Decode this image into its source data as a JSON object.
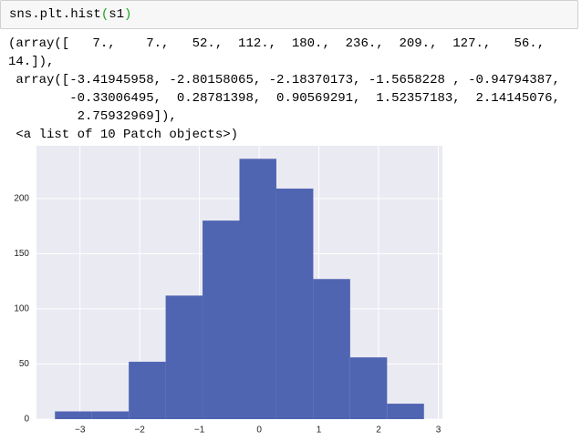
{
  "cell": {
    "code": [
      "sns.plt.hist",
      "(",
      "s1",
      ")"
    ]
  },
  "output": {
    "lines": [
      "(array([   7.,    7.,   52.,  112.,  180.,  236.,  209.,  127.,   56.,",
      "14.]),",
      " array([-3.41945958, -2.80158065, -2.18370173, -1.5658228 , -0.94794387,",
      "        -0.33006495,  0.28781398,  0.90569291,  1.52357183,  2.14145076,",
      "         2.75932969]),",
      " <a list of 10 Patch objects>)"
    ]
  },
  "chart_data": {
    "type": "histogram",
    "bins": [
      -3.41945958,
      -2.80158065,
      -2.18370173,
      -1.5658228,
      -0.94794387,
      -0.33006495,
      0.28781398,
      0.90569291,
      1.52357183,
      2.14145076,
      2.75932969
    ],
    "values": [
      7,
      7,
      52,
      112,
      180,
      236,
      209,
      127,
      56,
      14
    ],
    "color": "#5065b2",
    "xlim": [
      -3.7284,
      3.0683
    ],
    "ylim": [
      0,
      247.8
    ],
    "xticks": [
      {
        "value": -3,
        "label": "−3"
      },
      {
        "value": -2,
        "label": "−2"
      },
      {
        "value": -1,
        "label": "−1"
      },
      0,
      1,
      2,
      3
    ],
    "yticks": [
      0,
      50,
      100,
      150,
      200
    ],
    "grid": true
  }
}
